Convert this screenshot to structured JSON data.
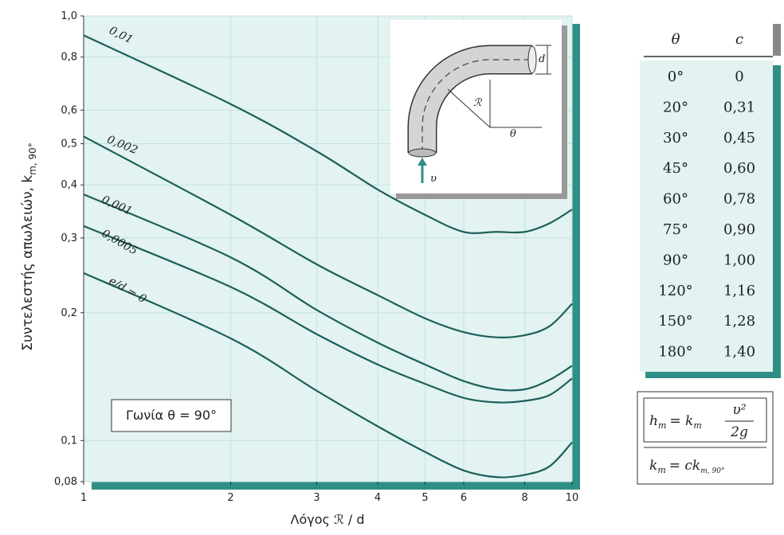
{
  "chart_data": {
    "type": "line",
    "xlabel": "Λόγος ℛ / d",
    "ylabel": "Συντελεστής απωλειών,  k",
    "ylabel_sub": "m, 90°",
    "annotation": "Γωνία θ = 90°",
    "xscale": "log",
    "yscale": "log",
    "grid": true,
    "xlim": [
      1,
      10
    ],
    "ylim": [
      0.08,
      1
    ],
    "xticks": [
      1,
      2,
      3,
      4,
      5,
      6,
      8,
      10
    ],
    "yticks": [
      {
        "value": 0.08,
        "label": "0,08"
      },
      {
        "value": 0.1,
        "label": "0,1"
      },
      {
        "value": 0.2,
        "label": "0,2"
      },
      {
        "value": 0.3,
        "label": "0,3"
      },
      {
        "value": 0.4,
        "label": "0,4"
      },
      {
        "value": 0.5,
        "label": "0,5"
      },
      {
        "value": 0.6,
        "label": "0,6"
      },
      {
        "value": 0.8,
        "label": "0,8"
      },
      {
        "value": 1,
        "label": "1,0"
      }
    ],
    "x": [
      1,
      2,
      3,
      4,
      5,
      6,
      7,
      8,
      9,
      10
    ],
    "series": [
      {
        "name": "0,01",
        "color": "#1d5f5a",
        "values": [
          0.9,
          0.62,
          0.48,
          0.39,
          0.34,
          0.31,
          0.31,
          0.31,
          0.325,
          0.35
        ]
      },
      {
        "name": "0,002",
        "color": "#1d5f5a",
        "values": [
          0.52,
          0.34,
          0.26,
          0.22,
          0.194,
          0.18,
          0.175,
          0.177,
          0.186,
          0.21
        ]
      },
      {
        "name": "0,001",
        "color": "#1d5f5a",
        "values": [
          0.38,
          0.27,
          0.203,
          0.17,
          0.151,
          0.138,
          0.132,
          0.132,
          0.139,
          0.15
        ]
      },
      {
        "name": "0,0005",
        "color": "#1d5f5a",
        "values": [
          0.32,
          0.23,
          0.178,
          0.151,
          0.136,
          0.126,
          0.123,
          0.124,
          0.128,
          0.14
        ]
      },
      {
        "name": "e/d = 0",
        "color": "#1d5f5a",
        "values": [
          0.248,
          0.174,
          0.131,
          0.108,
          0.094,
          0.085,
          0.082,
          0.083,
          0.087,
          0.099
        ]
      }
    ]
  },
  "inset": {
    "d": "d",
    "R": "ℛ",
    "theta": "θ",
    "v": "υ"
  },
  "table": {
    "header": [
      "θ",
      "c"
    ],
    "rows": [
      [
        "0°",
        "0"
      ],
      [
        "20°",
        "0,31"
      ],
      [
        "30°",
        "0,45"
      ],
      [
        "45°",
        "0,60"
      ],
      [
        "60°",
        "0,78"
      ],
      [
        "75°",
        "0,90"
      ],
      [
        "90°",
        "1,00"
      ],
      [
        "120°",
        "1,16"
      ],
      [
        "150°",
        "1,28"
      ],
      [
        "180°",
        "1,40"
      ]
    ]
  },
  "formulas": {
    "f1_lhs": "h",
    "f1_lhs_sub": "m",
    "f1_eq": "= k",
    "f1_eq_sub": "m",
    "f1_num": "υ²",
    "f1_den": "2g",
    "f2_lhs": "k",
    "f2_lhs_sub": "m",
    "f2_eq": "= ck",
    "f2_eq_sub": "m, 90°"
  }
}
